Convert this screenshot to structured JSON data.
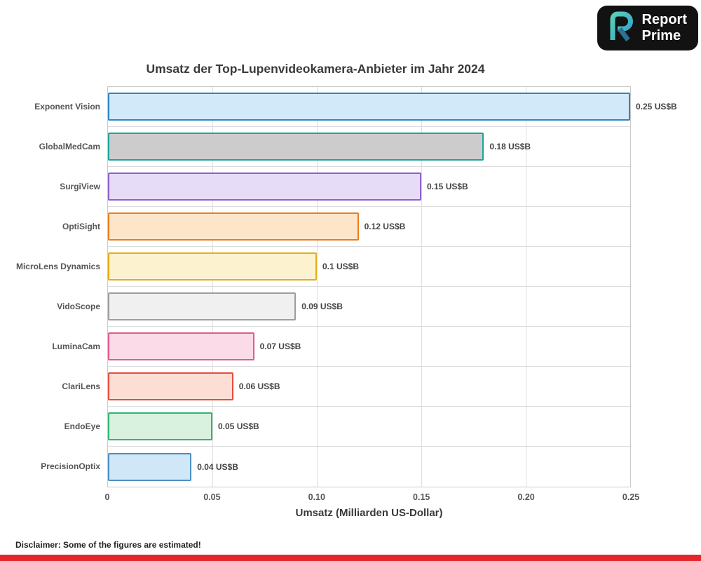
{
  "logo": {
    "line1": "Report",
    "line2": "Prime"
  },
  "chart_data": {
    "type": "bar",
    "orientation": "horizontal",
    "title": "Umsatz der Top-Lupenvideokamera-Anbieter im Jahr 2024",
    "xlabel": "Umsatz (Milliarden US-Dollar)",
    "xlim": [
      0,
      0.25
    ],
    "grid": true,
    "legend": false,
    "xticks": [
      0,
      0.05,
      0.1,
      0.15,
      0.2,
      0.25
    ],
    "xtick_labels": [
      "0",
      "0.05",
      "0.10",
      "0.15",
      "0.20",
      "0.25"
    ],
    "categories": [
      "Exponent Vision",
      "GlobalMedCam",
      "SurgiView",
      "OptiSight",
      "MicroLens Dynamics",
      "VidoScope",
      "LuminaCam",
      "ClariLens",
      "EndoEye",
      "PrecisionOptix"
    ],
    "values": [
      0.25,
      0.18,
      0.15,
      0.12,
      0.1,
      0.09,
      0.07,
      0.06,
      0.05,
      0.04
    ],
    "value_labels": [
      "0.25 US$B",
      "0.18 US$B",
      "0.15 US$B",
      "0.12 US$B",
      "0.1 US$B",
      "0.09 US$B",
      "0.07 US$B",
      "0.06 US$B",
      "0.05 US$B",
      "0.04 US$B"
    ],
    "bar_colors": [
      {
        "fill": "#d2e9f9",
        "stroke": "#2e86c1"
      },
      {
        "fill": "#cccccc",
        "stroke": "#1fa49b"
      },
      {
        "fill": "#e6dcf8",
        "stroke": "#8e5fc8"
      },
      {
        "fill": "#fde5c9",
        "stroke": "#e67e22"
      },
      {
        "fill": "#fdf2cf",
        "stroke": "#e5ad16"
      },
      {
        "fill": "#f0f0f0",
        "stroke": "#9e9e9e"
      },
      {
        "fill": "#fadbe7",
        "stroke": "#e0598f"
      },
      {
        "fill": "#fcded4",
        "stroke": "#e74c3c"
      },
      {
        "fill": "#d8f2df",
        "stroke": "#34b373"
      },
      {
        "fill": "#cfe7f6",
        "stroke": "#4a90c2"
      }
    ]
  },
  "disclaimer": "Disclaimer: Some of the figures are estimated!",
  "colors": {
    "footer_strip": "#e5242b",
    "logo_bg": "#121212"
  }
}
